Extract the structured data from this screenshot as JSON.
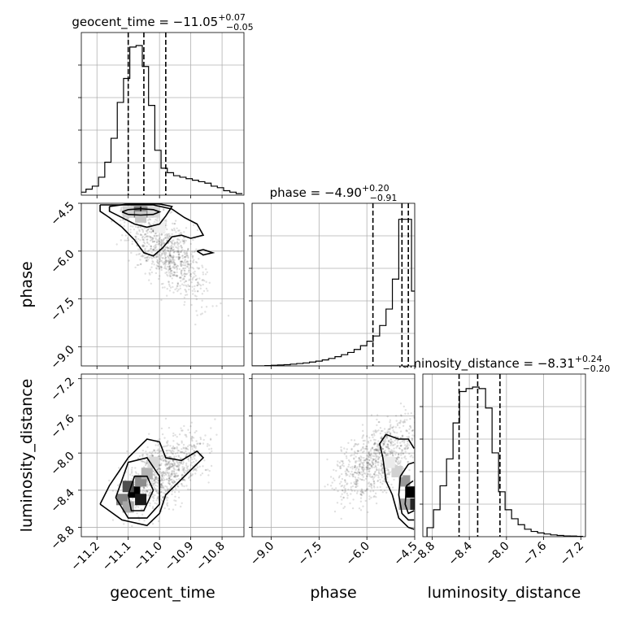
{
  "chart_data": {
    "type": "corner",
    "parameters": [
      {
        "name": "geocent_time",
        "xlabel": "geocent_time",
        "title_label": "geocent_time",
        "median": "−11.05",
        "plus": "+0.07",
        "minus": "−0.05",
        "range": [
          -11.25,
          -10.73
        ],
        "ticks": [
          -11.2,
          -11.1,
          -11.0,
          -10.9,
          -10.8
        ],
        "tick_labels": [
          "−11.2",
          "−11.1",
          "−11.0",
          "−10.9",
          "−10.8"
        ],
        "quantiles": [
          -11.1,
          -11.05,
          -10.98
        ],
        "hist_x": [
          -11.245,
          -11.225,
          -11.205,
          -11.185,
          -11.165,
          -11.145,
          -11.125,
          -11.105,
          -11.085,
          -11.065,
          -11.045,
          -11.025,
          -11.005,
          -10.985,
          -10.965,
          -10.945,
          -10.925,
          -10.905,
          -10.885,
          -10.865,
          -10.845,
          -10.825,
          -10.805,
          -10.785,
          -10.765,
          -10.745
        ],
        "hist_y": [
          0.02,
          0.04,
          0.06,
          0.12,
          0.22,
          0.38,
          0.62,
          0.78,
          0.99,
          1.0,
          0.86,
          0.6,
          0.3,
          0.18,
          0.15,
          0.13,
          0.12,
          0.11,
          0.1,
          0.09,
          0.08,
          0.06,
          0.05,
          0.03,
          0.02,
          0.01
        ]
      },
      {
        "name": "phase",
        "xlabel": "phase",
        "ylabel": "phase",
        "title_label": "phase",
        "median": "−4.90",
        "plus": "+0.20",
        "minus": "−0.91",
        "range": [
          -9.6,
          -4.5
        ],
        "ticks": [
          -9.0,
          -7.5,
          -6.0,
          -4.5
        ],
        "tick_labels": [
          "−9.0",
          "−7.5",
          "−6.0",
          "−4.5"
        ],
        "quantiles": [
          -5.81,
          -4.9,
          -4.7
        ],
        "hist_x": [
          -9.5,
          -9.3,
          -9.1,
          -8.9,
          -8.7,
          -8.5,
          -8.3,
          -8.1,
          -7.9,
          -7.7,
          -7.5,
          -7.3,
          -7.1,
          -6.9,
          -6.7,
          -6.5,
          -6.3,
          -6.1,
          -5.9,
          -5.7,
          -5.5,
          -5.3,
          -5.1,
          -4.9,
          -4.7,
          -4.5
        ],
        "hist_y": [
          0.0,
          0.0,
          0.002,
          0.004,
          0.006,
          0.008,
          0.012,
          0.016,
          0.02,
          0.026,
          0.032,
          0.04,
          0.05,
          0.062,
          0.075,
          0.09,
          0.11,
          0.135,
          0.165,
          0.2,
          0.27,
          0.38,
          0.58,
          0.98,
          0.98,
          0.5
        ]
      },
      {
        "name": "luminosity_distance",
        "xlabel": "luminosity_distance",
        "ylabel": "luminosity_distance",
        "title_label": "luminosity_distance",
        "median": "−8.31",
        "plus": "+0.24",
        "minus": "−0.20",
        "range": [
          -8.9,
          -7.15
        ],
        "ticks": [
          -8.8,
          -8.4,
          -8.0,
          -7.6,
          -7.2
        ],
        "tick_labels": [
          "−8.8",
          "−8.4",
          "−8.0",
          "−7.6",
          "−7.2"
        ],
        "quantiles": [
          -8.51,
          -8.31,
          -8.07
        ],
        "hist_x": [
          -8.82,
          -8.75,
          -8.68,
          -8.61,
          -8.54,
          -8.47,
          -8.4,
          -8.33,
          -8.26,
          -8.19,
          -8.12,
          -8.05,
          -7.98,
          -7.91,
          -7.84,
          -7.77,
          -7.7,
          -7.63,
          -7.56,
          -7.49,
          -7.42,
          -7.35,
          -7.28,
          -7.21
        ],
        "hist_y": [
          0.06,
          0.18,
          0.34,
          0.52,
          0.76,
          0.97,
          0.99,
          1.0,
          0.99,
          0.86,
          0.56,
          0.3,
          0.18,
          0.12,
          0.08,
          0.05,
          0.035,
          0.025,
          0.018,
          0.012,
          0.008,
          0.005,
          0.004,
          0.002
        ]
      }
    ],
    "panels_2d": [
      {
        "x": "geocent_time",
        "y": "phase",
        "density": [
          {
            "x": -11.06,
            "y": -4.77,
            "v": 1.0
          },
          {
            "x": -11.08,
            "y": -4.77,
            "v": 0.55
          },
          {
            "x": -11.04,
            "y": -4.77,
            "v": 0.45
          },
          {
            "x": -11.1,
            "y": -4.77,
            "v": 0.18
          },
          {
            "x": -11.02,
            "y": -4.77,
            "v": 0.15
          },
          {
            "x": -11.06,
            "y": -4.93,
            "v": 0.22
          },
          {
            "x": -11.0,
            "y": -5.25,
            "v": 0.06
          }
        ],
        "contours": [
          [
            [
              -11.12,
              -4.77
            ],
            [
              -11.1,
              -4.7
            ],
            [
              -11.06,
              -4.67
            ],
            [
              -11.02,
              -4.7
            ],
            [
              -11.0,
              -4.77
            ],
            [
              -11.02,
              -4.85
            ],
            [
              -11.06,
              -4.87
            ],
            [
              -11.1,
              -4.85
            ],
            [
              -11.12,
              -4.77
            ]
          ],
          [
            [
              -11.16,
              -4.6
            ],
            [
              -11.1,
              -4.52
            ],
            [
              -11.0,
              -4.52
            ],
            [
              -10.96,
              -4.6
            ],
            [
              -10.98,
              -4.9
            ],
            [
              -11.0,
              -5.15
            ],
            [
              -11.04,
              -5.25
            ],
            [
              -11.08,
              -5.15
            ],
            [
              -11.12,
              -4.95
            ],
            [
              -11.16,
              -4.75
            ],
            [
              -11.16,
              -4.6
            ]
          ],
          [
            [
              -11.19,
              -4.55
            ],
            [
              -11.02,
              -4.55
            ],
            [
              -10.96,
              -4.68
            ],
            [
              -10.92,
              -4.95
            ],
            [
              -10.88,
              -5.15
            ],
            [
              -10.86,
              -5.5
            ],
            [
              -10.9,
              -5.6
            ],
            [
              -10.93,
              -5.5
            ],
            [
              -10.96,
              -5.55
            ],
            [
              -10.99,
              -5.9
            ],
            [
              -11.02,
              -6.15
            ],
            [
              -11.05,
              -6.05
            ],
            [
              -11.08,
              -5.65
            ],
            [
              -11.12,
              -5.25
            ],
            [
              -11.16,
              -4.95
            ],
            [
              -11.19,
              -4.75
            ],
            [
              -11.19,
              -4.55
            ]
          ],
          [
            [
              -10.88,
              -6.0
            ],
            [
              -10.86,
              -5.95
            ],
            [
              -10.83,
              -6.05
            ],
            [
              -10.86,
              -6.12
            ],
            [
              -10.88,
              -6.0
            ]
          ]
        ],
        "scatter_center": [
          -10.98,
          -6.0
        ],
        "scatter_spread": [
          0.09,
          0.95
        ],
        "scatter_corr": -0.6
      },
      {
        "x": "geocent_time",
        "y": "luminosity_distance",
        "density": [
          {
            "x": -11.08,
            "y": -8.42,
            "v": 1.0
          },
          {
            "x": -11.06,
            "y": -8.5,
            "v": 0.9
          },
          {
            "x": -11.1,
            "y": -8.36,
            "v": 0.7
          },
          {
            "x": -11.06,
            "y": -8.3,
            "v": 0.45
          },
          {
            "x": -11.12,
            "y": -8.5,
            "v": 0.5
          },
          {
            "x": -11.04,
            "y": -8.22,
            "v": 0.3
          },
          {
            "x": -11.02,
            "y": -8.1,
            "v": 0.15
          },
          {
            "x": -11.1,
            "y": -8.58,
            "v": 0.35
          }
        ],
        "contours": [
          [
            [
              -11.1,
              -8.45
            ],
            [
              -11.08,
              -8.25
            ],
            [
              -11.04,
              -8.25
            ],
            [
              -11.02,
              -8.4
            ],
            [
              -11.05,
              -8.62
            ],
            [
              -11.09,
              -8.62
            ],
            [
              -11.1,
              -8.45
            ]
          ],
          [
            [
              -11.14,
              -8.48
            ],
            [
              -11.1,
              -8.1
            ],
            [
              -11.04,
              -8.05
            ],
            [
              -11.0,
              -8.25
            ],
            [
              -11.0,
              -8.55
            ],
            [
              -11.04,
              -8.7
            ],
            [
              -11.1,
              -8.7
            ],
            [
              -11.14,
              -8.48
            ]
          ],
          [
            [
              -11.19,
              -8.55
            ],
            [
              -11.16,
              -8.35
            ],
            [
              -11.1,
              -8.05
            ],
            [
              -11.04,
              -7.85
            ],
            [
              -11.0,
              -7.88
            ],
            [
              -10.98,
              -8.05
            ],
            [
              -10.93,
              -8.08
            ],
            [
              -10.88,
              -7.98
            ],
            [
              -10.86,
              -8.05
            ],
            [
              -10.92,
              -8.25
            ],
            [
              -10.98,
              -8.45
            ],
            [
              -11.0,
              -8.65
            ],
            [
              -11.04,
              -8.78
            ],
            [
              -11.12,
              -8.72
            ],
            [
              -11.19,
              -8.55
            ]
          ]
        ],
        "scatter_center": [
          -10.98,
          -8.2
        ],
        "scatter_spread": [
          0.09,
          0.3
        ],
        "scatter_corr": 0.55
      },
      {
        "x": "phase",
        "y": "luminosity_distance",
        "density": [
          {
            "x": -4.62,
            "y": -8.42,
            "v": 1.0
          },
          {
            "x": -4.62,
            "y": -8.55,
            "v": 0.85
          },
          {
            "x": -4.82,
            "y": -8.3,
            "v": 0.4
          },
          {
            "x": -4.82,
            "y": -8.55,
            "v": 0.35
          },
          {
            "x": -5.05,
            "y": -8.2,
            "v": 0.18
          },
          {
            "x": -5.3,
            "y": -8.1,
            "v": 0.08
          }
        ],
        "contours": [
          [
            [
              -4.55,
              -8.3
            ],
            [
              -4.75,
              -8.35
            ],
            [
              -4.8,
              -8.55
            ],
            [
              -4.7,
              -8.65
            ],
            [
              -4.52,
              -8.62
            ]
          ],
          [
            [
              -4.52,
              -8.1
            ],
            [
              -4.7,
              -8.12
            ],
            [
              -4.95,
              -8.25
            ],
            [
              -5.0,
              -8.45
            ],
            [
              -4.9,
              -8.65
            ],
            [
              -4.7,
              -8.72
            ],
            [
              -4.52,
              -8.72
            ]
          ],
          [
            [
              -4.52,
              -7.95
            ],
            [
              -4.7,
              -7.85
            ],
            [
              -5.0,
              -7.85
            ],
            [
              -5.4,
              -7.8
            ],
            [
              -5.6,
              -7.9
            ],
            [
              -5.5,
              -8.05
            ],
            [
              -5.4,
              -8.3
            ],
            [
              -5.2,
              -8.45
            ],
            [
              -5.0,
              -8.7
            ],
            [
              -4.7,
              -8.8
            ],
            [
              -4.52,
              -8.82
            ]
          ]
        ],
        "scatter_center": [
          -5.6,
          -8.05
        ],
        "scatter_spread": [
          0.9,
          0.32
        ],
        "scatter_corr": 0.55
      }
    ]
  }
}
